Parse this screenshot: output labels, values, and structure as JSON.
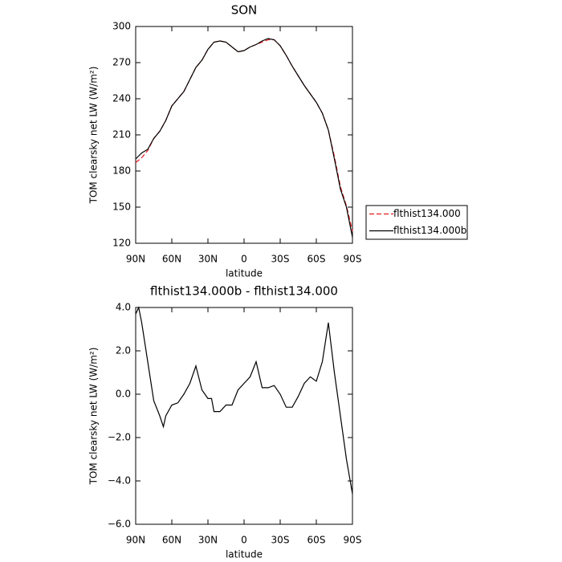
{
  "chart_data": [
    {
      "type": "line",
      "title": "SON",
      "xlabel": "latitude",
      "ylabel": "TOM clearsky net LW (W/m²)",
      "x": [
        90,
        85,
        80,
        75,
        70,
        65,
        60,
        55,
        50,
        45,
        40,
        35,
        30,
        25,
        20,
        15,
        10,
        5,
        0,
        -5,
        -10,
        -15,
        -20,
        -25,
        -30,
        -35,
        -40,
        -45,
        -50,
        -55,
        -60,
        -65,
        -70,
        -75,
        -80,
        -85,
        -90
      ],
      "series": [
        {
          "name": "flthist134.000",
          "color": "#e41a1c",
          "dash": true,
          "values": [
            187,
            191,
            197,
            207,
            213,
            222,
            234,
            240,
            246,
            256,
            266,
            272,
            281,
            287,
            288,
            287,
            283,
            279,
            280,
            283,
            285,
            287,
            289,
            289,
            284,
            276,
            267,
            259,
            251,
            244,
            237,
            228,
            214,
            192,
            167,
            151,
            130
          ]
        },
        {
          "name": "flthist134.000b",
          "color": "#000000",
          "dash": false,
          "values": [
            190,
            195,
            198,
            207,
            213,
            222,
            234,
            240,
            246,
            256,
            266,
            272,
            281,
            287,
            288,
            287,
            283,
            279,
            280,
            283,
            285,
            288,
            290,
            289,
            284,
            276,
            267,
            259,
            251,
            244,
            237,
            228,
            214,
            190,
            165,
            150,
            125
          ]
        }
      ],
      "xlim": [
        90,
        -90
      ],
      "xticks": [
        {
          "value": 90,
          "label": "90N"
        },
        {
          "value": 60,
          "label": "60N"
        },
        {
          "value": 30,
          "label": "30N"
        },
        {
          "value": 0,
          "label": "0"
        },
        {
          "value": -30,
          "label": "30S"
        },
        {
          "value": -60,
          "label": "60S"
        },
        {
          "value": -90,
          "label": "90S"
        }
      ],
      "ylim": [
        120,
        300
      ],
      "yticks": [
        120,
        150,
        180,
        210,
        240,
        270,
        300
      ],
      "legend": "right"
    },
    {
      "type": "line",
      "title": "flthist134.000b - flthist134.000",
      "xlabel": "latitude",
      "ylabel": "TOM clearsky net LW (W/m²)",
      "x": [
        90,
        87.5,
        85,
        80,
        75,
        70,
        67,
        65,
        60,
        55,
        50,
        45,
        40,
        35,
        30,
        27,
        25,
        20,
        15,
        10,
        5,
        0,
        -5,
        -10,
        -15,
        -20,
        -25,
        -30,
        -35,
        -40,
        -45,
        -50,
        -55,
        -60,
        -65,
        -70,
        -75,
        -80,
        -85,
        -90
      ],
      "series": [
        {
          "color": "#000000",
          "dash": false,
          "values": [
            3.7,
            4.0,
            3.3,
            1.5,
            -0.3,
            -1.0,
            -1.5,
            -1.0,
            -0.5,
            -0.4,
            0.0,
            0.5,
            1.3,
            0.2,
            -0.2,
            -0.2,
            -0.8,
            -0.8,
            -0.5,
            -0.5,
            0.2,
            0.5,
            0.8,
            1.5,
            0.3,
            0.3,
            0.4,
            0.0,
            -0.6,
            -0.6,
            -0.1,
            0.5,
            0.8,
            0.6,
            1.5,
            3.3,
            1.0,
            -1.0,
            -3.0,
            -4.6
          ]
        }
      ],
      "xlim": [
        90,
        -90
      ],
      "xticks": [
        {
          "value": 90,
          "label": "90N"
        },
        {
          "value": 60,
          "label": "60N"
        },
        {
          "value": 30,
          "label": "30N"
        },
        {
          "value": 0,
          "label": "0"
        },
        {
          "value": -30,
          "label": "30S"
        },
        {
          "value": -60,
          "label": "60S"
        },
        {
          "value": -90,
          "label": "90S"
        }
      ],
      "ylim": [
        -6,
        4
      ],
      "yticks": [
        {
          "value": -6,
          "label": "−6.0"
        },
        {
          "value": -4,
          "label": "−4.0"
        },
        {
          "value": -2,
          "label": "−2.0"
        },
        {
          "value": 0,
          "label": "0.0"
        },
        {
          "value": 2,
          "label": "2.0"
        },
        {
          "value": 4,
          "label": "4.0"
        }
      ]
    }
  ]
}
